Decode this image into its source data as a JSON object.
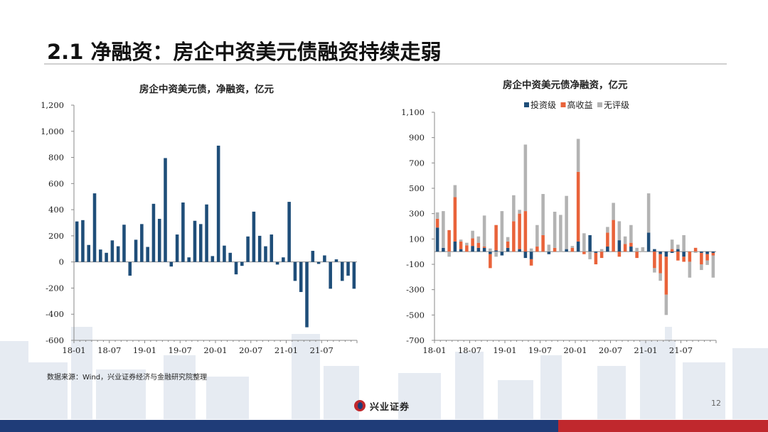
{
  "slide_title": "2.1 净融资：房企中资美元债融资持续走弱",
  "source_note": "数据来源：Wind，兴业证券经济与金融研究院整理",
  "logo_text": "兴业证券",
  "page_number": "12",
  "colors": {
    "navy": "#1f4e79",
    "orange": "#e9633a",
    "gray": "#b3b3b3",
    "footer_blue": "#1f3c78",
    "footer_red": "#c0282d"
  },
  "chart_data": [
    {
      "type": "bar",
      "title": "房企中资美元债，净融资，亿元",
      "ylim": [
        -600,
        1200
      ],
      "yticks": [
        -600,
        -400,
        -200,
        0,
        200,
        400,
        600,
        800,
        1000,
        1200
      ],
      "ytick_labels": [
        "-600",
        "-400",
        "-200",
        "0",
        "200",
        "400",
        "600",
        "800",
        "1,000",
        "1,200"
      ],
      "xticks": [
        "18-01",
        "18-07",
        "19-01",
        "19-07",
        "20-01",
        "20-07",
        "21-01",
        "21-07"
      ],
      "categories": [
        "18-01",
        "18-02",
        "18-03",
        "18-04",
        "18-05",
        "18-06",
        "18-07",
        "18-08",
        "18-09",
        "18-10",
        "18-11",
        "18-12",
        "19-01",
        "19-02",
        "19-03",
        "19-04",
        "19-05",
        "19-06",
        "19-07",
        "19-08",
        "19-09",
        "19-10",
        "19-11",
        "19-12",
        "20-01",
        "20-02",
        "20-03",
        "20-04",
        "20-05",
        "20-06",
        "20-07",
        "20-08",
        "20-09",
        "20-10",
        "20-11",
        "20-12",
        "21-01",
        "21-02",
        "21-03",
        "21-04",
        "21-05",
        "21-06",
        "21-07",
        "21-08",
        "21-09",
        "21-10",
        "21-11",
        "21-12"
      ],
      "series": [
        {
          "values": [
            310,
            320,
            130,
            525,
            95,
            70,
            165,
            120,
            285,
            -105,
            170,
            290,
            115,
            445,
            330,
            795,
            -35,
            210,
            455,
            35,
            315,
            290,
            440,
            45,
            890,
            125,
            70,
            -95,
            -30,
            195,
            385,
            200,
            120,
            210,
            -20,
            35,
            460,
            -145,
            -230,
            -500,
            85,
            -15,
            50,
            -205,
            20,
            -145,
            -105,
            -205
          ]
        }
      ],
      "color": "#1f4e79"
    },
    {
      "type": "bar",
      "stacked": true,
      "title": "房企中资美元债净融资，亿元",
      "ylim": [
        -700,
        1100
      ],
      "yticks": [
        -700,
        -500,
        -300,
        -100,
        100,
        300,
        500,
        700,
        900,
        1100
      ],
      "ytick_labels": [
        "-700",
        "-500",
        "-300",
        "-100",
        "100",
        "300",
        "500",
        "700",
        "900",
        "1,100"
      ],
      "xticks": [
        "18-01",
        "18-07",
        "19-01",
        "19-07",
        "20-01",
        "20-07",
        "21-01",
        "21-07"
      ],
      "legend_position": "top-right",
      "categories": [
        "18-01",
        "18-02",
        "18-03",
        "18-04",
        "18-05",
        "18-06",
        "18-07",
        "18-08",
        "18-09",
        "18-10",
        "18-11",
        "18-12",
        "19-01",
        "19-02",
        "19-03",
        "19-04",
        "19-05",
        "19-06",
        "19-07",
        "19-08",
        "19-09",
        "19-10",
        "19-11",
        "19-12",
        "20-01",
        "20-02",
        "20-03",
        "20-04",
        "20-05",
        "20-06",
        "20-07",
        "20-08",
        "20-09",
        "20-10",
        "20-11",
        "20-12",
        "21-01",
        "21-02",
        "21-03",
        "21-04",
        "21-05",
        "21-06",
        "21-07",
        "21-08",
        "21-09",
        "21-10",
        "21-11",
        "21-12"
      ],
      "series": [
        {
          "name": "投资级",
          "color": "#1f4e79",
          "values": [
            190,
            30,
            0,
            80,
            20,
            0,
            45,
            30,
            30,
            -20,
            10,
            -30,
            30,
            0,
            20,
            -50,
            -60,
            0,
            0,
            -20,
            0,
            0,
            20,
            0,
            80,
            0,
            130,
            -10,
            0,
            40,
            0,
            90,
            0,
            40,
            0,
            0,
            150,
            20,
            -20,
            -40,
            -10,
            20,
            -40,
            0,
            0,
            -10,
            -20,
            -10
          ]
        },
        {
          "name": "高收益",
          "color": "#e9633a",
          "values": [
            70,
            0,
            170,
            350,
            60,
            50,
            60,
            40,
            10,
            -110,
            200,
            0,
            50,
            240,
            280,
            320,
            -50,
            40,
            130,
            0,
            30,
            0,
            0,
            30,
            550,
            -20,
            0,
            -90,
            -50,
            110,
            250,
            -40,
            60,
            30,
            -50,
            0,
            0,
            -130,
            -150,
            -300,
            20,
            -70,
            -40,
            -80,
            30,
            -90,
            -50,
            -20
          ]
        },
        {
          "name": "无评级",
          "color": "#b3b3b3",
          "values": [
            50,
            290,
            -40,
            95,
            15,
            20,
            60,
            50,
            245,
            25,
            -40,
            320,
            35,
            205,
            30,
            525,
            25,
            170,
            325,
            55,
            285,
            290,
            420,
            15,
            260,
            145,
            -60,
            5,
            20,
            45,
            135,
            150,
            60,
            140,
            30,
            35,
            310,
            -35,
            -60,
            -160,
            75,
            35,
            130,
            -125,
            -10,
            -45,
            -35,
            -175
          ]
        }
      ]
    }
  ]
}
